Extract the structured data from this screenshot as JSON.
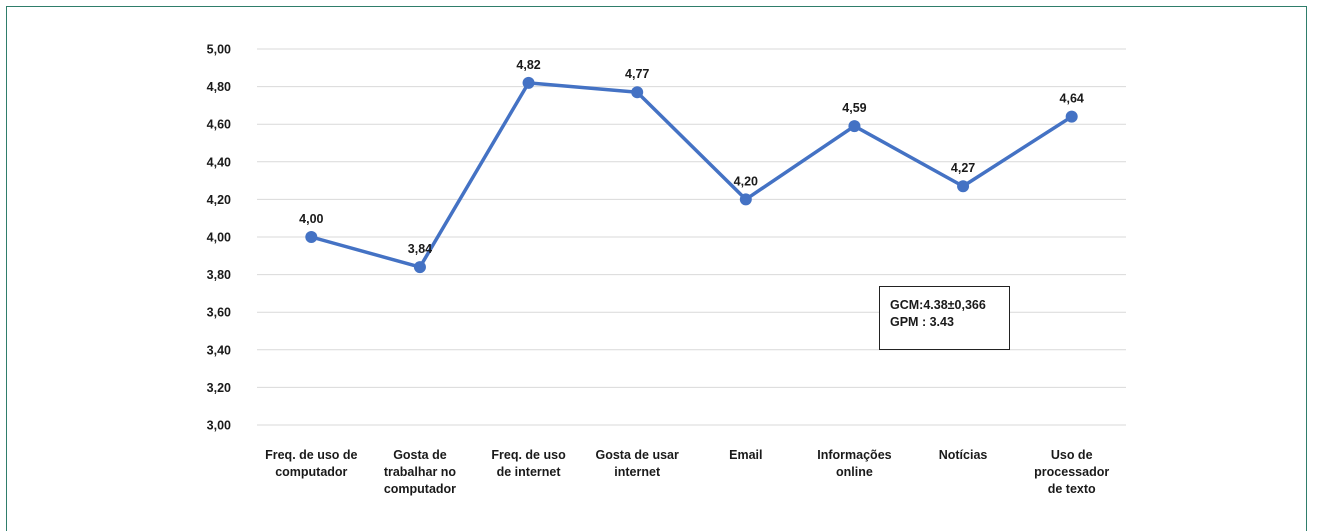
{
  "chart_data": {
    "type": "line",
    "categories": [
      [
        "Freq. de uso de",
        "computador"
      ],
      [
        "Gosta de",
        "trabalhar no",
        "computador"
      ],
      [
        "Freq. de uso",
        "de internet"
      ],
      [
        "Gosta de usar",
        "internet"
      ],
      [
        "Email"
      ],
      [
        "Informações",
        "online"
      ],
      [
        "Notícias"
      ],
      [
        "Uso de",
        "processador",
        "de texto"
      ]
    ],
    "series": [
      {
        "values": [
          4.0,
          3.84,
          4.82,
          4.77,
          4.2,
          4.59,
          4.27,
          4.64
        ]
      }
    ],
    "data_labels": [
      "4,00",
      "3,84",
      "4,82",
      "4,77",
      "4,20",
      "4,59",
      "4,27",
      "4,64"
    ],
    "y_ticks": [
      {
        "value": 3.0,
        "label": "3,00"
      },
      {
        "value": 3.2,
        "label": "3,20"
      },
      {
        "value": 3.4,
        "label": "3,40"
      },
      {
        "value": 3.6,
        "label": "3,60"
      },
      {
        "value": 3.8,
        "label": "3,80"
      },
      {
        "value": 4.0,
        "label": "4,00"
      },
      {
        "value": 4.2,
        "label": "4,20"
      },
      {
        "value": 4.4,
        "label": "4,40"
      },
      {
        "value": 4.6,
        "label": "4,60"
      },
      {
        "value": 4.8,
        "label": "4,80"
      },
      {
        "value": 5.0,
        "label": "5,00"
      }
    ],
    "ylim": [
      3.0,
      5.0
    ],
    "grid": true,
    "legend": "none",
    "title": "",
    "xlabel": "",
    "ylabel": ""
  },
  "annotation": {
    "line1": "GCM:4.38±0,366",
    "line2": "GPM : 3.43"
  },
  "colors": {
    "series_line": "#4472c4",
    "grid": "#d9d9d9",
    "frame": "#2f7d6b",
    "text": "#1a1a1a"
  }
}
